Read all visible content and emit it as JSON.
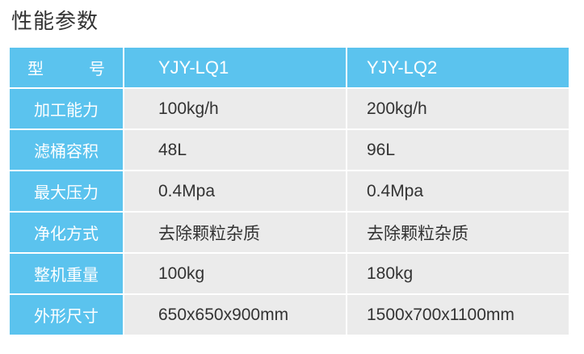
{
  "title": "性能参数",
  "header": {
    "label_left": "型",
    "label_right": "号",
    "models": [
      "YJY-LQ1",
      "YJY-LQ2"
    ]
  },
  "rows": [
    {
      "label": "加工能力",
      "values": [
        "100kg/h",
        "200kg/h"
      ]
    },
    {
      "label": "滤桶容积",
      "values": [
        "48L",
        "96L"
      ]
    },
    {
      "label": "最大压力",
      "values": [
        "0.4Mpa",
        "0.4Mpa"
      ]
    },
    {
      "label": "净化方式",
      "values": [
        "去除颗粒杂质",
        "去除颗粒杂质"
      ]
    },
    {
      "label": "整机重量",
      "values": [
        "100kg",
        "180kg"
      ]
    },
    {
      "label": "外形尺寸",
      "values": [
        "650x650x900mm",
        "1500x700x1100mm"
      ]
    }
  ],
  "colors": {
    "header_bg": "#5bc3ee",
    "cell_bg": "#ebebeb"
  }
}
